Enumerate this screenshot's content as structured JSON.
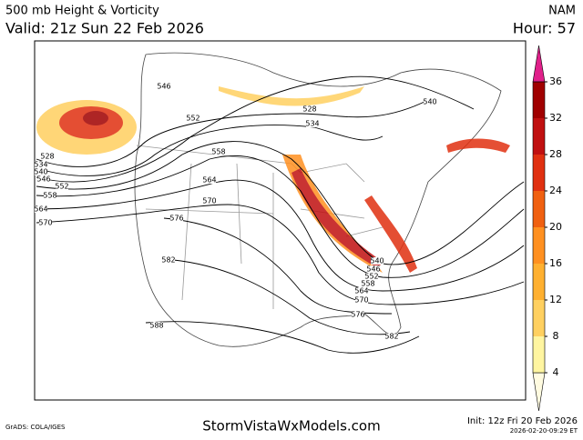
{
  "header": {
    "title": "500 mb Height & Vorticity",
    "valid": "Valid: 21z Sun 22 Feb 2026",
    "model": "NAM",
    "hour": "Hour: 57"
  },
  "colorbar": {
    "ticks": [
      4,
      8,
      12,
      16,
      20,
      24,
      28,
      32,
      36
    ]
  },
  "contour_labels": [
    546,
    552,
    558,
    564,
    570,
    576,
    582,
    588,
    528,
    534,
    540,
    546,
    552,
    558,
    564,
    570,
    528,
    534,
    540,
    540,
    546,
    552,
    558,
    564,
    570,
    576,
    582
  ],
  "footer": {
    "credit": "GrADS: COLA/IGES",
    "site": "StormVistaWxModels.com",
    "init": "Init: 12z Fri 20 Feb 2026",
    "timestamp": "2026-02-20-09:29 ET"
  }
}
